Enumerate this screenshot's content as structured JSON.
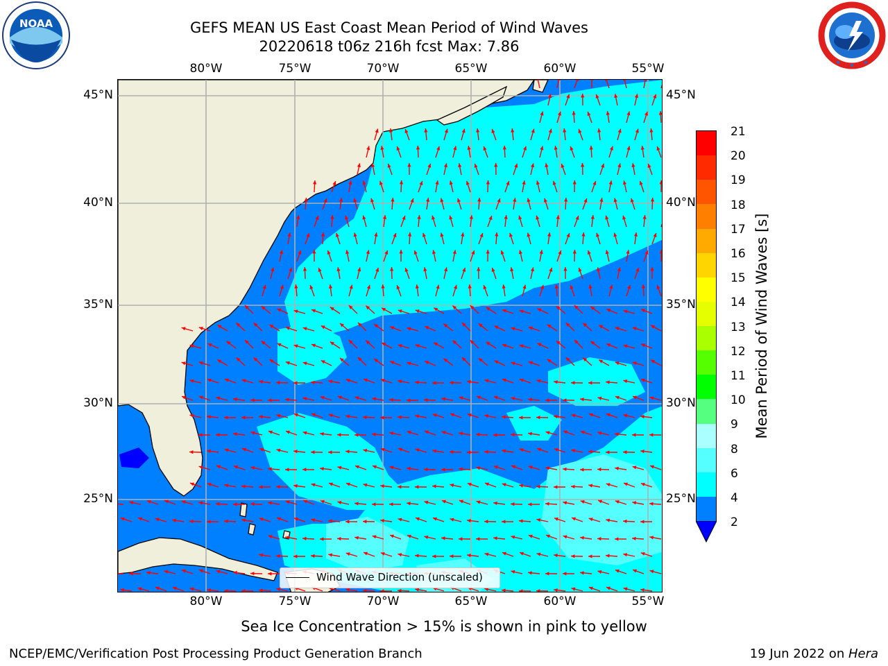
{
  "header": {
    "title_line1": "GEFS MEAN US East Coast Mean Period of Wind Waves",
    "title_line2": "20220618 t06z 216h fcst   Max: 7.86"
  },
  "logos": {
    "left": {
      "name": "noaa-logo",
      "text": "NOAA"
    },
    "right": {
      "name": "nws-logo",
      "text": "NATIONAL WEATHER SERVICE"
    }
  },
  "map": {
    "lon_labels": [
      "80°W",
      "75°W",
      "70°W",
      "65°W",
      "60°W",
      "55°W"
    ],
    "lat_labels": [
      "45°N",
      "40°N",
      "35°N",
      "30°N",
      "25°N"
    ],
    "legend_label": "Wind Wave Direction (unscaled)",
    "colors": {
      "land": "#efefdc",
      "field_2_4": "#0080ff",
      "field_4_6": "#00ffff",
      "field_6_8": "#55ffff",
      "field_lt_2": "#0000ff",
      "arrow": "#ff0000",
      "grid": "#b0b0b0"
    }
  },
  "colorbar": {
    "label": "Mean Period of Wind Waves [s]",
    "ticks": [
      "21",
      "20",
      "19",
      "18",
      "17",
      "16",
      "15",
      "14",
      "13",
      "12",
      "11",
      "10",
      "9",
      "8",
      "6",
      "4",
      "2"
    ],
    "bands": [
      {
        "range": "20-21",
        "color": "#ff0000"
      },
      {
        "range": "19-20",
        "color": "#ff2a00"
      },
      {
        "range": "18-19",
        "color": "#ff5500"
      },
      {
        "range": "17-18",
        "color": "#ff8000"
      },
      {
        "range": "16-17",
        "color": "#ffaa00"
      },
      {
        "range": "15-16",
        "color": "#ffd500"
      },
      {
        "range": "14-15",
        "color": "#ffff00"
      },
      {
        "range": "13-14",
        "color": "#e5ff00"
      },
      {
        "range": "12-13",
        "color": "#aaff00"
      },
      {
        "range": "11-12",
        "color": "#55ff00"
      },
      {
        "range": "10-11",
        "color": "#00ff00"
      },
      {
        "range": "9-10",
        "color": "#55ff80"
      },
      {
        "range": "8-9",
        "color": "#aaffff"
      },
      {
        "range": "6-8",
        "color": "#55ffff"
      },
      {
        "range": "4-6",
        "color": "#00ffff"
      },
      {
        "range": "2-4",
        "color": "#0080ff"
      }
    ],
    "under_color": "#0000ff"
  },
  "footer": {
    "note": "Sea Ice Concentration > 15% is shown in pink to yellow",
    "left": "NCEP/EMC/Verification Post Processing Product Generation Branch",
    "right_prefix": "19 Jun 2022 on ",
    "right_host": "Hera"
  }
}
